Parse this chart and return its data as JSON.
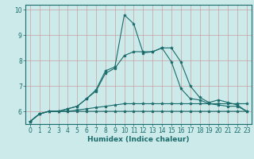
{
  "xlabel": "Humidex (Indice chaleur)",
  "bg_color": "#cceaea",
  "grid_color_v": "#c8a0a0",
  "grid_color_h": "#c8a0a0",
  "line_color": "#1a6b6b",
  "x_values": [
    0,
    1,
    2,
    3,
    4,
    5,
    6,
    7,
    8,
    9,
    10,
    11,
    12,
    13,
    14,
    15,
    16,
    17,
    18,
    19,
    20,
    21,
    22,
    23
  ],
  "series": [
    [
      5.6,
      5.9,
      6.0,
      6.0,
      6.0,
      6.0,
      6.0,
      6.0,
      6.0,
      6.0,
      6.0,
      6.0,
      6.0,
      6.0,
      6.0,
      6.0,
      6.0,
      6.0,
      6.0,
      6.0,
      6.0,
      6.0,
      6.0,
      6.0
    ],
    [
      5.6,
      5.9,
      6.0,
      6.0,
      6.0,
      6.05,
      6.1,
      6.15,
      6.2,
      6.25,
      6.3,
      6.3,
      6.3,
      6.3,
      6.3,
      6.3,
      6.3,
      6.3,
      6.3,
      6.3,
      6.3,
      6.3,
      6.3,
      6.3
    ],
    [
      5.6,
      5.9,
      6.0,
      6.0,
      6.1,
      6.2,
      6.5,
      6.8,
      7.5,
      7.7,
      8.2,
      8.35,
      8.35,
      8.35,
      8.5,
      7.95,
      6.9,
      6.5,
      6.45,
      6.3,
      6.25,
      6.2,
      6.2,
      6.0
    ],
    [
      5.6,
      5.9,
      6.0,
      6.0,
      6.1,
      6.2,
      6.5,
      6.85,
      7.6,
      7.75,
      9.8,
      9.45,
      8.3,
      8.35,
      8.5,
      8.5,
      7.95,
      7.0,
      6.55,
      6.35,
      6.45,
      6.35,
      6.25,
      6.0
    ]
  ],
  "ylim": [
    5.5,
    10.2
  ],
  "xlim": [
    -0.5,
    23.5
  ],
  "yticks": [
    6,
    7,
    8,
    9,
    10
  ],
  "xticks": [
    0,
    1,
    2,
    3,
    4,
    5,
    6,
    7,
    8,
    9,
    10,
    11,
    12,
    13,
    14,
    15,
    16,
    17,
    18,
    19,
    20,
    21,
    22,
    23
  ],
  "tick_fontsize": 5.5,
  "xlabel_fontsize": 6.5
}
